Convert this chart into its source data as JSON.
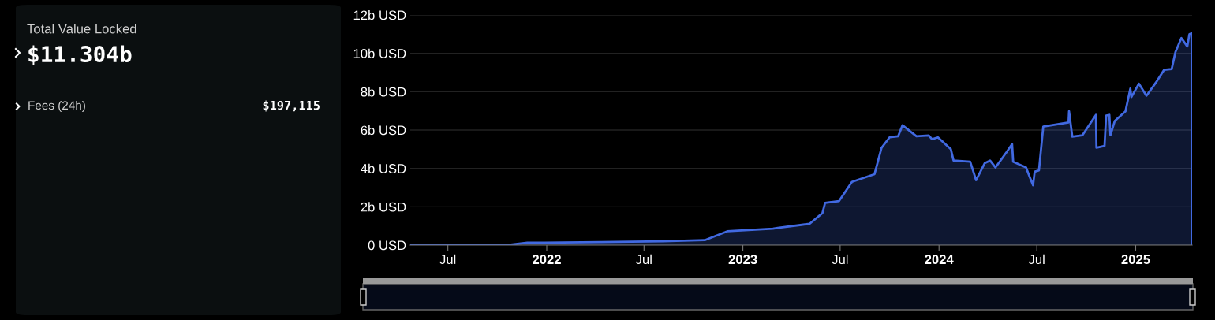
{
  "chart_data": {
    "type": "area",
    "annotations": [
      "Total Value Locked",
      "$11.304b",
      "Fees (24h)",
      "$197,115"
    ],
    "x": [
      "2021-04-22",
      "2021-10-20",
      "2021-11-26",
      "2021-12-28",
      "2022-04-11",
      "2022-08-05",
      "2022-10-22",
      "2022-12-03",
      "2023-02-26",
      "2023-03-07",
      "2023-05-05",
      "2023-05-29",
      "2023-06-03",
      "2023-06-29",
      "2023-07-23",
      "2023-09-03",
      "2023-09-16",
      "2023-10-01",
      "2023-10-17",
      "2023-10-25",
      "2023-11-20",
      "2023-12-13",
      "2023-12-19",
      "2023-12-30",
      "2024-01-23",
      "2024-01-28",
      "2024-02-28",
      "2024-03-10",
      "2024-03-26",
      "2024-04-05",
      "2024-04-15",
      "2024-05-06",
      "2024-05-16",
      "2024-05-18",
      "2024-06-11",
      "2024-06-17",
      "2024-06-24",
      "2024-06-27",
      "2024-07-05",
      "2024-07-13",
      "2024-08-29",
      "2024-08-30",
      "2024-09-05",
      "2024-09-24",
      "2024-10-19",
      "2024-10-20",
      "2024-11-04",
      "2024-11-07",
      "2024-11-13",
      "2024-11-15",
      "2024-11-23",
      "2024-12-13",
      "2024-12-22",
      "2024-12-24",
      "2025-01-07",
      "2025-01-21",
      "2025-02-08",
      "2025-02-23",
      "2025-03-09",
      "2025-03-16",
      "2025-03-27",
      "2025-04-07",
      "2025-04-11",
      "2025-04-15",
      "2025-04-16"
    ],
    "series": [
      {
        "color": "#4169e1",
        "values": [
          0,
          0,
          0.13,
          0.13,
          0.16,
          0.2,
          0.26,
          0.72,
          0.86,
          0.9,
          1.11,
          1.67,
          2.2,
          2.3,
          3.3,
          3.7,
          5.07,
          5.62,
          5.68,
          6.25,
          5.68,
          5.72,
          5.52,
          5.62,
          5.0,
          4.41,
          4.35,
          3.39,
          4.27,
          4.41,
          4.05,
          4.86,
          5.27,
          4.35,
          4.05,
          3.61,
          3.12,
          3.83,
          3.9,
          6.18,
          6.4,
          6.98,
          5.66,
          5.73,
          6.79,
          5.08,
          5.17,
          6.76,
          6.79,
          5.73,
          6.47,
          6.98,
          8.16,
          7.72,
          8.42,
          7.79,
          8.49,
          9.14,
          9.18,
          10.07,
          10.8,
          10.36,
          11.0,
          11.04,
          0
        ]
      }
    ],
    "xlim": [
      "2021-04-22",
      "2025-04-16"
    ],
    "xticks": [
      {
        "value": "2021-07-01",
        "label": "Jul"
      },
      {
        "value": "2022-01-01",
        "label": "2022"
      },
      {
        "value": "2022-07-01",
        "label": "Jul"
      },
      {
        "value": "2023-01-01",
        "label": "2023"
      },
      {
        "value": "2023-07-01",
        "label": "Jul"
      },
      {
        "value": "2024-01-01",
        "label": "2024"
      },
      {
        "value": "2024-07-01",
        "label": "Jul"
      },
      {
        "value": "2025-01-01",
        "label": "2025"
      }
    ],
    "ylim": [
      0,
      12
    ],
    "yticks": [
      {
        "value": 0,
        "label": "0 USD"
      },
      {
        "value": 2,
        "label": "2b USD"
      },
      {
        "value": 4,
        "label": "4b USD"
      },
      {
        "value": 6,
        "label": "6b USD"
      },
      {
        "value": 8,
        "label": "8b USD"
      },
      {
        "value": 10,
        "label": "10b USD"
      },
      {
        "value": 12,
        "label": "12b USD"
      }
    ],
    "grid": "y"
  }
}
